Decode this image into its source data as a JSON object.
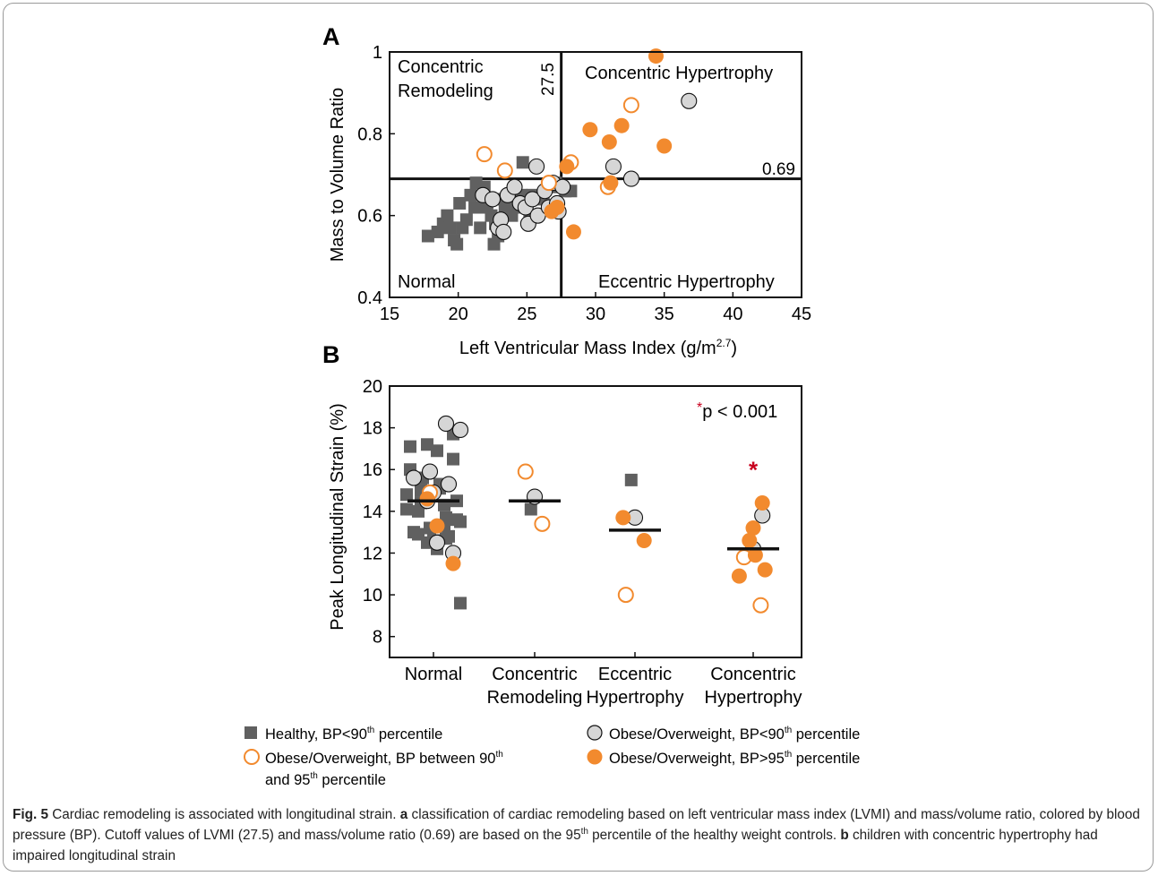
{
  "figure": {
    "colors": {
      "healthy": "#606060",
      "obese_bp_lt90_fill": "#d6d6d6",
      "orange": "#f28a2e",
      "star": "#c8001e",
      "axis": "#111111"
    }
  },
  "panel_a": {
    "label": "A",
    "quadrant_labels": {
      "concentric_remodeling": [
        "Concentric",
        "Remodeling"
      ],
      "concentric_hypertrophy": "Concentric Hypertrophy",
      "normal": "Normal",
      "eccentric_hypertrophy": "Eccentric Hypertrophy"
    },
    "cutoff_x_label": "27.5",
    "cutoff_y_label": "0.69"
  },
  "panel_b": {
    "label": "B",
    "pvalue_star": "*",
    "pvalue_text": "p < 0.001",
    "group_star": "*"
  },
  "legend": {
    "healthy": "Healthy, BP<90",
    "healthy_sup": "th",
    "healthy_tail": " percentile",
    "obese_lt90": "Obese/Overweight, BP<90",
    "obese_lt90_sup": "th",
    "obese_lt90_tail": " percentile",
    "obese_90_95_line1": "Obese/Overweight, BP between 90",
    "obese_90_95_sup1": "th",
    "obese_90_95_line2a": "and 95",
    "obese_90_95_sup2": "th",
    "obese_90_95_line2b": " percentile",
    "obese_gt95": "Obese/Overweight, BP>95",
    "obese_gt95_sup": "th",
    "obese_gt95_tail": " percentile"
  },
  "caption": {
    "fig_label": "Fig. 5",
    "title": " Cardiac remodeling is associated with longitudinal strain. ",
    "a_label": "a",
    "a_text_1": " classification of cardiac remodeling based on left ventricular mass index (LVMI) and mass/volume ratio, colored by blood pressure (BP). Cutoff values of LVMI (27.5) and mass/volume ratio (0.69) are based on the 95",
    "a_sup": "th",
    "a_text_2": " percentile of the healthy weight controls. ",
    "b_label": "b",
    "b_text": " children with concentric hypertrophy had impaired longitudinal strain"
  },
  "chart_data": [
    {
      "type": "scatter",
      "title": "",
      "xlabel": "Left Ventricular Mass Index (g/m",
      "xlabel_sup": "2.7",
      "xlabel_tail": ")",
      "ylabel": "Mass to Volume Ratio",
      "xlim": [
        15,
        45
      ],
      "ylim": [
        0.4,
        1.0
      ],
      "xticks": [
        15,
        20,
        25,
        30,
        35,
        40,
        45
      ],
      "yticks": [
        0.4,
        0.6,
        0.8,
        1.0
      ],
      "yticklabels": [
        "0.4",
        "0.6",
        "0.8",
        "1"
      ],
      "cutoff_x": 27.5,
      "cutoff_y": 0.69,
      "grid": false,
      "series": [
        {
          "name": "Healthy, BP<90th percentile",
          "marker": "square",
          "points": [
            [
              17.8,
              0.55
            ],
            [
              18.5,
              0.56
            ],
            [
              18.9,
              0.58
            ],
            [
              19.2,
              0.6
            ],
            [
              19.4,
              0.57
            ],
            [
              19.7,
              0.54
            ],
            [
              19.9,
              0.53
            ],
            [
              20.1,
              0.63
            ],
            [
              20.3,
              0.57
            ],
            [
              20.6,
              0.59
            ],
            [
              20.9,
              0.65
            ],
            [
              21.2,
              0.62
            ],
            [
              21.6,
              0.57
            ],
            [
              21.9,
              0.67
            ],
            [
              22.1,
              0.62
            ],
            [
              22.4,
              0.6
            ],
            [
              22.7,
              0.58
            ],
            [
              22.9,
              0.55
            ],
            [
              22.6,
              0.53
            ],
            [
              23.1,
              0.64
            ],
            [
              23.4,
              0.62
            ],
            [
              23.9,
              0.6
            ],
            [
              24.3,
              0.62
            ],
            [
              24.6,
              0.65
            ],
            [
              24.7,
              0.73
            ],
            [
              25.2,
              0.6
            ],
            [
              25.4,
              0.65
            ],
            [
              26.2,
              0.64
            ],
            [
              26.8,
              0.67
            ],
            [
              27.1,
              0.68
            ],
            [
              27.8,
              0.66
            ],
            [
              28.2,
              0.66
            ],
            [
              21.3,
              0.68
            ]
          ]
        },
        {
          "name": "Obese/Overweight, BP<90th percentile",
          "marker": "circle",
          "points": [
            [
              21.8,
              0.65
            ],
            [
              22.5,
              0.64
            ],
            [
              22.9,
              0.57
            ],
            [
              23.1,
              0.59
            ],
            [
              23.3,
              0.56
            ],
            [
              23.6,
              0.65
            ],
            [
              24.1,
              0.67
            ],
            [
              24.5,
              0.63
            ],
            [
              24.9,
              0.62
            ],
            [
              25.1,
              0.58
            ],
            [
              25.4,
              0.64
            ],
            [
              25.8,
              0.6
            ],
            [
              25.7,
              0.72
            ],
            [
              26.3,
              0.66
            ],
            [
              26.6,
              0.62
            ],
            [
              26.9,
              0.68
            ],
            [
              27.2,
              0.63
            ],
            [
              27.6,
              0.67
            ],
            [
              27.3,
              0.61
            ],
            [
              31.3,
              0.72
            ],
            [
              32.6,
              0.69
            ],
            [
              36.8,
              0.88
            ]
          ]
        },
        {
          "name": "Obese/Overweight, BP between 90th and 95th percentile",
          "marker": "open-circle",
          "points": [
            [
              21.9,
              0.75
            ],
            [
              23.4,
              0.71
            ],
            [
              26.6,
              0.68
            ],
            [
              28.2,
              0.73
            ],
            [
              30.9,
              0.67
            ],
            [
              32.6,
              0.87
            ]
          ]
        },
        {
          "name": "Obese/Overweight, BP>95th percentile",
          "marker": "filled-circle",
          "points": [
            [
              34.4,
              0.99
            ],
            [
              29.6,
              0.81
            ],
            [
              31.0,
              0.78
            ],
            [
              31.9,
              0.82
            ],
            [
              35.0,
              0.77
            ],
            [
              27.9,
              0.72
            ],
            [
              27.2,
              0.62
            ],
            [
              26.8,
              0.61
            ],
            [
              28.4,
              0.56
            ],
            [
              31.1,
              0.68
            ]
          ]
        }
      ]
    },
    {
      "type": "scatter",
      "title": "",
      "xlabel": "",
      "ylabel": "Peak Longitudinal Strain (%)",
      "ylim": [
        7,
        20
      ],
      "yticks": [
        8,
        10,
        12,
        14,
        16,
        18,
        20
      ],
      "categories": [
        [
          "Normal"
        ],
        [
          "Concentric",
          "Remodeling"
        ],
        [
          "Eccentric",
          "Hypertrophy"
        ],
        [
          "Concentric",
          "Hypertrophy"
        ]
      ],
      "means": [
        14.5,
        14.5,
        13.1,
        12.2
      ],
      "grid": false,
      "series": [
        {
          "name": "Healthy, BP<90th percentile",
          "marker": "square",
          "points": [
            [
              0,
              17.2
            ],
            [
              0,
              16.9
            ],
            [
              0,
              16.5
            ],
            [
              0,
              16.0
            ],
            [
              0,
              15.6
            ],
            [
              0,
              15.3
            ],
            [
              0,
              15.0
            ],
            [
              0,
              14.8
            ],
            [
              0,
              14.5
            ],
            [
              0,
              14.3
            ],
            [
              0,
              14.0
            ],
            [
              0,
              13.7
            ],
            [
              0,
              13.5
            ],
            [
              0,
              13.2
            ],
            [
              0,
              13.0
            ],
            [
              0,
              12.8
            ],
            [
              0,
              12.6
            ],
            [
              0,
              12.5
            ],
            [
              0,
              12.2
            ],
            [
              0,
              17.7
            ],
            [
              0,
              17.1
            ],
            [
              0,
              15.6
            ],
            [
              0,
              15.1
            ],
            [
              0,
              14.4
            ],
            [
              0,
              14.1
            ],
            [
              0,
              13.6
            ],
            [
              0,
              13.3
            ],
            [
              0,
              12.9
            ],
            [
              0,
              12.7
            ],
            [
              0,
              9.6
            ],
            [
              1,
              14.1
            ],
            [
              2,
              15.5
            ]
          ]
        },
        {
          "name": "Obese/Overweight, BP<90th percentile",
          "marker": "circle",
          "points": [
            [
              0,
              18.2
            ],
            [
              0,
              17.9
            ],
            [
              0,
              15.9
            ],
            [
              0,
              15.6
            ],
            [
              0,
              15.3
            ],
            [
              0,
              14.9
            ],
            [
              0,
              14.5
            ],
            [
              0,
              12.5
            ],
            [
              0,
              12.0
            ],
            [
              1,
              14.7
            ],
            [
              2,
              13.7
            ],
            [
              3,
              13.8
            ],
            [
              3,
              12.2
            ]
          ]
        },
        {
          "name": "Obese/Overweight, BP between 90th and 95th percentile",
          "marker": "open-circle",
          "points": [
            [
              0,
              14.9
            ],
            [
              1,
              15.9
            ],
            [
              1,
              13.4
            ],
            [
              2,
              10.0
            ],
            [
              3,
              11.8
            ],
            [
              3,
              9.5
            ]
          ]
        },
        {
          "name": "Obese/Overweight, BP>95th percentile",
          "marker": "filled-circle",
          "points": [
            [
              0,
              14.6
            ],
            [
              0,
              13.3
            ],
            [
              0,
              11.5
            ],
            [
              2,
              13.7
            ],
            [
              2,
              12.6
            ],
            [
              3,
              14.4
            ],
            [
              3,
              13.2
            ],
            [
              3,
              12.6
            ],
            [
              3,
              11.9
            ],
            [
              3,
              11.2
            ],
            [
              3,
              10.9
            ]
          ]
        }
      ]
    }
  ]
}
